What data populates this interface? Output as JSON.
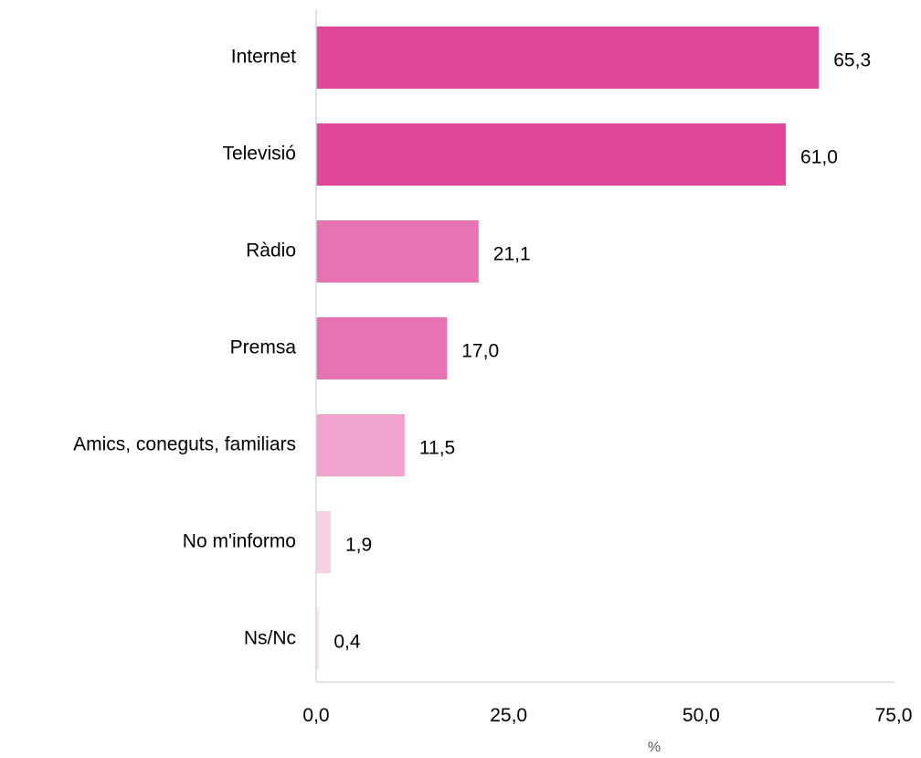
{
  "chart_data": {
    "type": "bar",
    "orientation": "horizontal",
    "categories": [
      "Internet",
      "Televisió",
      "Ràdio",
      "Premsa",
      "Amics, coneguts, familiars",
      "No m'informo",
      "Ns/Nc"
    ],
    "values": [
      65.3,
      61.0,
      21.1,
      17.0,
      11.5,
      1.9,
      0.4
    ],
    "value_labels": [
      "65,3",
      "61,0",
      "21,1",
      "17,0",
      "11,5",
      "1,9",
      "0,4"
    ],
    "bar_colors": [
      "#e2479a",
      "#e2479a",
      "#e873b3",
      "#e873b3",
      "#f0a3cc",
      "#f7d0e4",
      "#fbe6f0"
    ],
    "xlabel": "%",
    "ylabel": "",
    "xlim": [
      0,
      75
    ],
    "xticks": [
      0,
      25,
      50,
      75
    ],
    "xtick_labels": [
      "0,0",
      "25,0",
      "50,0",
      "75,0"
    ],
    "grid": false,
    "legend": "none"
  }
}
